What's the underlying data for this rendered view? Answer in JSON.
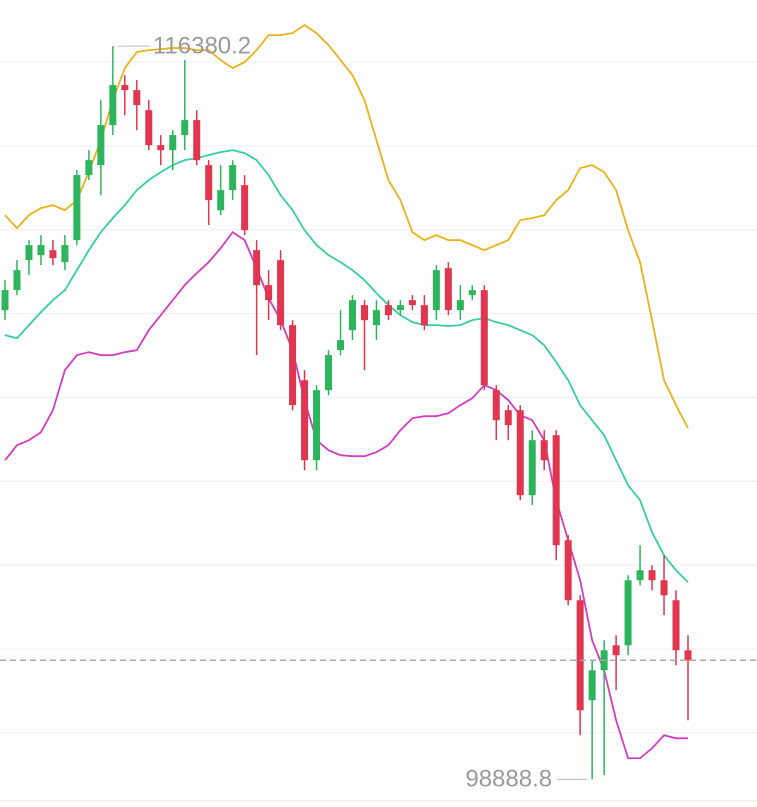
{
  "chart_data": {
    "type": "candlestick",
    "open": [
      110081,
      110559,
      111274,
      111394,
      111513,
      111227,
      111752,
      113303,
      113541,
      114496,
      115450,
      115331,
      114853,
      114018,
      113899,
      114257,
      114615,
      113541,
      112467,
      112945,
      113064,
      111513,
      110678,
      111274,
      109724,
      108411,
      106502,
      108173,
      109127,
      109604,
      110201,
      109724,
      110201,
      110081,
      110320,
      110201,
      110081,
      111084,
      110081,
      110439,
      110559,
      108173,
      107695,
      107695,
      105667,
      106980,
      107099,
      104594,
      103162,
      100776,
      101492,
      102088,
      102088,
      103639,
      103878,
      103639,
      103162,
      101969
    ],
    "high": [
      110797,
      111274,
      111752,
      111871,
      111752,
      111871,
      113422,
      113899,
      115092,
      116380.2,
      115689,
      115569,
      115092,
      114257,
      114376,
      116046,
      114853,
      113660,
      113541,
      113660,
      113303,
      111752,
      111036,
      111513,
      109843,
      108650,
      108292,
      109127,
      110081,
      110439,
      110320,
      110320,
      110320,
      110320,
      110439,
      110439,
      111155,
      111227,
      110678,
      110678,
      110678,
      108292,
      107815,
      107815,
      107218,
      107218,
      107218,
      104713,
      103281,
      101730,
      102208,
      102327,
      103758,
      104474,
      103997,
      104235,
      103400,
      102327
    ],
    "low": [
      109843,
      110439,
      110917,
      111155,
      111155,
      111036,
      111633,
      113183,
      112825,
      114257,
      114734,
      114376,
      113899,
      113541,
      113422,
      113899,
      113541,
      112110,
      112348,
      112706,
      111871,
      109008,
      109843,
      109604,
      107695,
      106264,
      106264,
      108053,
      109008,
      109366,
      108650,
      109366,
      109843,
      109962,
      110081,
      109604,
      109843,
      109962,
      109843,
      110320,
      108173,
      106980,
      106980,
      105548,
      105429,
      106264,
      104116,
      103043,
      99941,
      98888.8,
      98986,
      101015,
      101850,
      103520,
      103400,
      102804,
      101611,
      100299
    ],
    "close": [
      110559,
      111036,
      111633,
      111633,
      111322,
      111633,
      113303,
      113660,
      114496,
      115450,
      115331,
      114973,
      114018,
      113899,
      114257,
      114615,
      113660,
      112706,
      112945,
      113541,
      111990,
      110678,
      110320,
      109724,
      107815,
      106502,
      108173,
      109008,
      109366,
      110320,
      109843,
      110081,
      109962,
      110201,
      110201,
      109724,
      111036,
      110081,
      110320,
      110559,
      108292,
      107457,
      107338,
      105667,
      106980,
      106502,
      104474,
      103162,
      100537,
      101492,
      101969,
      101850,
      103639,
      103878,
      103639,
      103281,
      101969,
      101730
    ],
    "up_color": "#2db55d",
    "down_color": "#e0364f",
    "bands": [
      {
        "color": "#ebb21b",
        "values": [
          112348,
          112038,
          112348,
          112515,
          112587,
          112467,
          112706,
          113374,
          114138,
          115092,
          115856,
          116237,
          116285,
          116309,
          116333,
          116333,
          116285,
          116285,
          116046,
          115856,
          115999,
          116285,
          116643,
          116643,
          116691,
          116882,
          116691,
          116404,
          116046,
          115689,
          115092,
          114138,
          113183,
          112706,
          111942,
          111752,
          111871,
          111752,
          111752,
          111633,
          111513,
          111633,
          111752,
          112229,
          112277,
          112348,
          112706,
          112945,
          113470,
          113541,
          113374,
          112945,
          111990,
          111227,
          109843,
          108411,
          107815,
          107266
        ]
      },
      {
        "color": "#35cfa0",
        "values": [
          109485,
          109413,
          109724,
          110034,
          110320,
          110559,
          111036,
          111513,
          111942,
          112277,
          112587,
          112945,
          113183,
          113374,
          113541,
          113660,
          113708,
          113780,
          113851,
          113899,
          113827,
          113660,
          113303,
          112825,
          112467,
          111990,
          111633,
          111394,
          111227,
          111036,
          110797,
          110487,
          110201,
          109962,
          109795,
          109724,
          109724,
          109700,
          109724,
          109843,
          109891,
          109795,
          109724,
          109604,
          109485,
          109246,
          108841,
          108411,
          107815,
          107457,
          107099,
          106502,
          105906,
          105548,
          104784,
          104235,
          103878,
          103591
        ]
      },
      {
        "color": "#d63cbf",
        "values": [
          106502,
          106860,
          106980,
          107170,
          107695,
          108650,
          109008,
          109079,
          109008,
          109008,
          109079,
          109127,
          109604,
          109962,
          110320,
          110678,
          110964,
          111227,
          111561,
          111942,
          111752,
          111084,
          110368,
          109843,
          109127,
          107934,
          106980,
          106741,
          106622,
          106598,
          106598,
          106693,
          106860,
          107218,
          107505,
          107552,
          107552,
          107624,
          107815,
          107982,
          108292,
          108173,
          107934,
          107576,
          107457,
          106980,
          105548,
          104594,
          103639,
          102208,
          101492,
          100299,
          99392,
          99392,
          99631,
          99941,
          99869,
          99869
        ]
      }
    ],
    "ylim": [
      98230,
      117480
    ],
    "yticks": [
      100000,
      102000,
      104000,
      106000,
      108000,
      110000,
      112000,
      114000,
      116000
    ],
    "grid": true,
    "annotations": [
      {
        "text": "116380.2",
        "value": 116380.2
      },
      {
        "text": "98888.8",
        "value": 98888.8
      }
    ]
  }
}
